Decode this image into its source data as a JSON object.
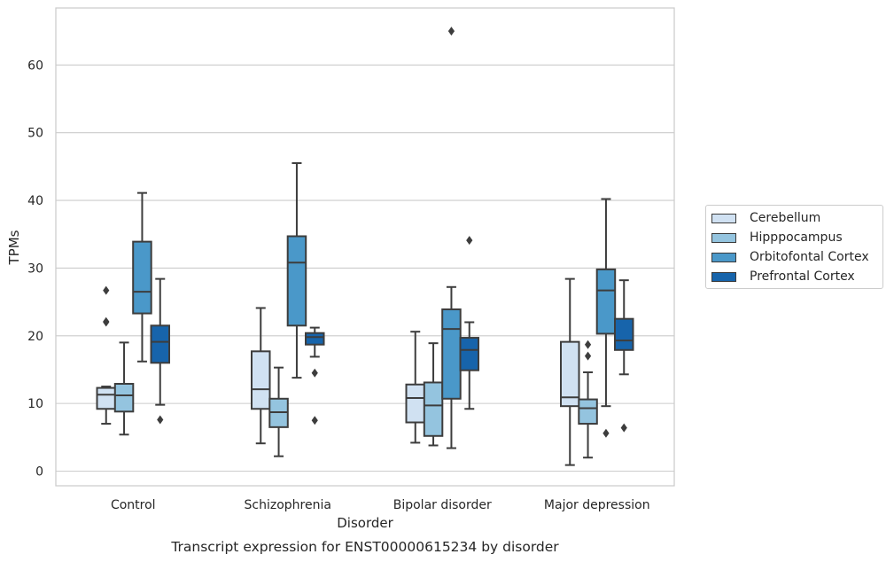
{
  "chart_data": {
    "type": "box",
    "title": "Transcript expression for ENST00000615234 by disorder",
    "xlabel": "Disorder",
    "ylabel": "TPMs",
    "ylim": [
      -2,
      67.5
    ],
    "yticks": [
      0,
      10,
      20,
      30,
      40,
      50,
      60
    ],
    "categories": [
      "Control",
      "Schizophrenia",
      "Bipolar disorder",
      "Major depression"
    ],
    "legend_position": "right",
    "grid": true,
    "series": [
      {
        "name": "Cerebellum",
        "color": "#d0e1f2",
        "boxes": [
          {
            "whislo": 7.0,
            "q1": 9.2,
            "med": 11.3,
            "q3": 12.3,
            "whishi": 12.5,
            "fliers": [
              22.1,
              26.7,
              22.0
            ]
          },
          {
            "whislo": 4.1,
            "q1": 9.2,
            "med": 12.1,
            "q3": 17.7,
            "whishi": 24.1,
            "fliers": []
          },
          {
            "whislo": 4.2,
            "q1": 7.2,
            "med": 10.8,
            "q3": 12.8,
            "whishi": 20.6,
            "fliers": []
          },
          {
            "whislo": 0.9,
            "q1": 9.6,
            "med": 10.9,
            "q3": 19.1,
            "whishi": 28.4,
            "fliers": []
          }
        ]
      },
      {
        "name": "Hipppocampus",
        "color": "#94c4df",
        "boxes": [
          {
            "whislo": 5.4,
            "q1": 8.8,
            "med": 11.2,
            "q3": 12.9,
            "whishi": 19.0,
            "fliers": []
          },
          {
            "whislo": 2.2,
            "q1": 6.5,
            "med": 8.7,
            "q3": 10.7,
            "whishi": 15.3,
            "fliers": []
          },
          {
            "whislo": 3.8,
            "q1": 5.2,
            "med": 9.7,
            "q3": 13.1,
            "whishi": 18.9,
            "fliers": []
          },
          {
            "whislo": 2.0,
            "q1": 7.0,
            "med": 9.3,
            "q3": 10.6,
            "whishi": 14.6,
            "fliers": [
              18.7,
              17.0
            ]
          }
        ]
      },
      {
        "name": "Orbitofontal Cortex",
        "color": "#4a98c9",
        "boxes": [
          {
            "whislo": 16.2,
            "q1": 23.3,
            "med": 26.5,
            "q3": 33.9,
            "whishi": 41.1,
            "fliers": []
          },
          {
            "whislo": 13.8,
            "q1": 21.5,
            "med": 30.8,
            "q3": 34.7,
            "whishi": 45.5,
            "fliers": []
          },
          {
            "whislo": 3.4,
            "q1": 10.7,
            "med": 21.0,
            "q3": 23.9,
            "whishi": 27.2,
            "fliers": [
              65.0
            ]
          },
          {
            "whislo": 9.6,
            "q1": 20.3,
            "med": 26.7,
            "q3": 29.8,
            "whishi": 40.2,
            "fliers": [
              5.6
            ]
          }
        ]
      },
      {
        "name": "Prefrontal Cortex",
        "color": "#1764ab",
        "boxes": [
          {
            "whislo": 9.8,
            "q1": 16.0,
            "med": 19.1,
            "q3": 21.5,
            "whishi": 28.4,
            "fliers": [
              7.6
            ]
          },
          {
            "whislo": 16.9,
            "q1": 18.7,
            "med": 19.8,
            "q3": 20.4,
            "whishi": 21.2,
            "fliers": [
              14.5,
              7.5
            ]
          },
          {
            "whislo": 9.2,
            "q1": 14.9,
            "med": 17.9,
            "q3": 19.7,
            "whishi": 22.0,
            "fliers": [
              34.1
            ]
          },
          {
            "whislo": 14.3,
            "q1": 17.9,
            "med": 19.3,
            "q3": 22.5,
            "whishi": 28.2,
            "fliers": [
              6.4
            ]
          }
        ]
      }
    ]
  }
}
